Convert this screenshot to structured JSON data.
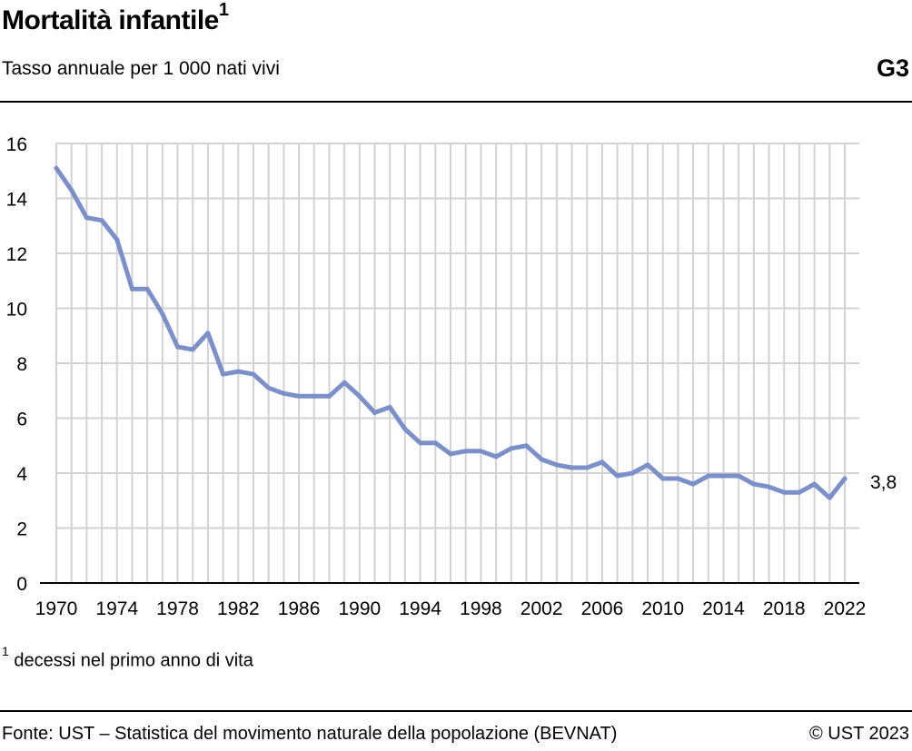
{
  "header": {
    "title": "Mortalità infantile",
    "title_footnote_mark": "1",
    "subtitle": "Tasso annuale per 1 000 nati vivi",
    "graphic_code": "G3"
  },
  "footnote": {
    "mark": "1",
    "text": "decessi nel primo anno di vita"
  },
  "footer": {
    "source": "Fonte: UST – Statistica del movimento naturale della popolazione (BEVNAT)",
    "copyright": "© UST 2023"
  },
  "colors": {
    "line": "#7b8fc8",
    "grid": "#d2d2d2",
    "text": "#000000"
  },
  "chart_data": {
    "type": "line",
    "title": "Mortalità infantile",
    "subtitle": "Tasso annuale per 1 000 nati vivi",
    "xlabel": "",
    "ylabel": "",
    "xlim": [
      1970,
      2022
    ],
    "ylim": [
      0,
      16
    ],
    "grid": true,
    "y_ticks": [
      0,
      2,
      4,
      6,
      8,
      10,
      12,
      14,
      16
    ],
    "x_ticks": [
      1970,
      1974,
      1978,
      1982,
      1986,
      1990,
      1994,
      1998,
      2002,
      2006,
      2010,
      2014,
      2018,
      2022
    ],
    "x": [
      1970,
      1971,
      1972,
      1973,
      1974,
      1975,
      1976,
      1977,
      1978,
      1979,
      1980,
      1981,
      1982,
      1983,
      1984,
      1985,
      1986,
      1987,
      1988,
      1989,
      1990,
      1991,
      1992,
      1993,
      1994,
      1995,
      1996,
      1997,
      1998,
      1999,
      2000,
      2001,
      2002,
      2003,
      2004,
      2005,
      2006,
      2007,
      2008,
      2009,
      2010,
      2011,
      2012,
      2013,
      2014,
      2015,
      2016,
      2017,
      2018,
      2019,
      2020,
      2021,
      2022
    ],
    "series": [
      {
        "values": [
          15.1,
          14.3,
          13.3,
          13.2,
          12.5,
          10.7,
          10.7,
          9.8,
          8.6,
          8.5,
          9.1,
          7.6,
          7.7,
          7.6,
          7.1,
          6.9,
          6.8,
          6.8,
          6.8,
          7.3,
          6.8,
          6.2,
          6.4,
          5.6,
          5.1,
          5.1,
          4.7,
          4.8,
          4.8,
          4.6,
          4.9,
          5.0,
          4.5,
          4.3,
          4.2,
          4.2,
          4.4,
          3.9,
          4.0,
          4.3,
          3.8,
          3.8,
          3.6,
          3.9,
          3.9,
          3.9,
          3.6,
          3.5,
          3.3,
          3.3,
          3.6,
          3.1,
          3.8
        ]
      }
    ],
    "last_value_label": "3,8"
  }
}
